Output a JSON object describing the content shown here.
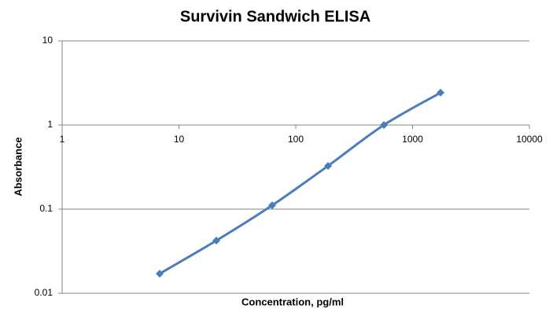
{
  "chart_data": {
    "type": "scatter",
    "title": "Survivin Sandwich ELISA",
    "x_label": "Concentration, pg/ml",
    "y_label": "Absorbance",
    "x_log": true,
    "y_log": true,
    "grid": true,
    "smooth_line": true,
    "x_axis_crosses": 1,
    "xlim": [
      1,
      10000
    ],
    "xticks": [
      1,
      10,
      100,
      1000,
      10000
    ],
    "ylim": [
      0.01,
      10
    ],
    "yticks": [
      0.01,
      0.1,
      1,
      10
    ],
    "series": [
      {
        "name": "Absorbance",
        "color": "#4a7ebb",
        "x": [
          6.84,
          20.9,
          62.8,
          189,
          568,
          1734
        ],
        "values": [
          0.0171,
          0.0423,
          0.111,
          0.327,
          1.0,
          2.42
        ]
      }
    ]
  }
}
